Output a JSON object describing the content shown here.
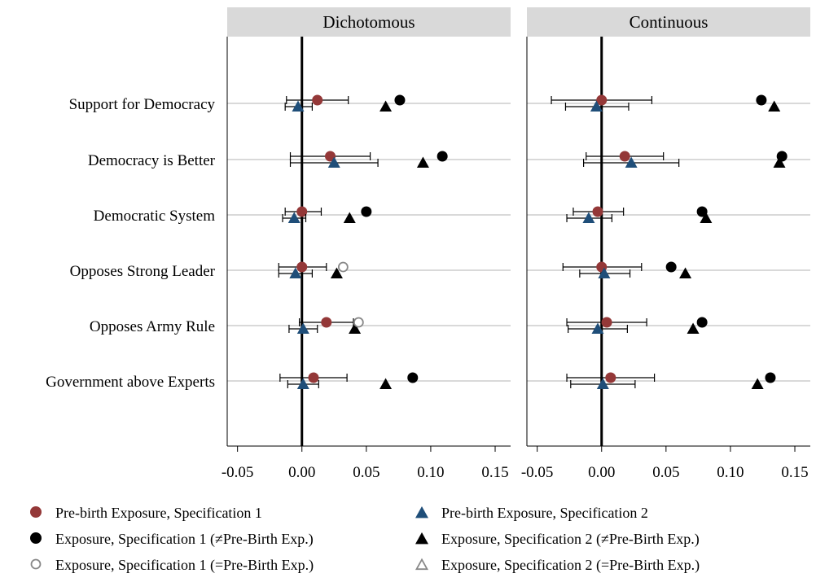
{
  "chart_data": {
    "type": "scatter",
    "subtype": "coefficient-plot with 95% confidence intervals",
    "panels": [
      {
        "title": "Dichotomous",
        "xlim": [
          -0.058,
          0.162
        ]
      },
      {
        "title": "Continuous",
        "xlim": [
          -0.058,
          0.162
        ]
      }
    ],
    "xticks": [
      -0.05,
      0.0,
      0.05,
      0.1,
      0.15
    ],
    "xtick_labels": [
      "-0.05",
      "0.00",
      "0.05",
      "0.10",
      "0.15"
    ],
    "categories": [
      "Support for Democracy",
      "Democracy is Better",
      "Democratic System",
      "Opposes Strong Leader",
      "Opposes Army Rule",
      "Government above Experts"
    ],
    "reference_line": 0,
    "grid": "horizontal row lines",
    "legend_position": "bottom",
    "colors": {
      "prebirth": "#943838",
      "spec2": "#1f4e79",
      "exposure": "#000000",
      "hollow": "#888888",
      "panel_header": "#d9d9d9",
      "row_line": "#d9d9d9"
    },
    "series": [
      {
        "name": "Pre-birth Exposure, Specification 1",
        "marker": "circle",
        "color": "#943838",
        "dichotomous": [
          {
            "est": 0.012,
            "lo": -0.012,
            "hi": 0.036
          },
          {
            "est": 0.022,
            "lo": -0.009,
            "hi": 0.053
          },
          {
            "est": 0.0,
            "lo": -0.013,
            "hi": 0.015
          },
          {
            "est": 0.0,
            "lo": -0.018,
            "hi": 0.019
          },
          {
            "est": 0.019,
            "lo": -0.002,
            "hi": 0.04
          },
          {
            "est": 0.009,
            "lo": -0.017,
            "hi": 0.035
          }
        ],
        "continuous": [
          {
            "est": 0.0,
            "lo": -0.039,
            "hi": 0.039
          },
          {
            "est": 0.018,
            "lo": -0.012,
            "hi": 0.048
          },
          {
            "est": -0.003,
            "lo": -0.022,
            "hi": 0.017
          },
          {
            "est": 0.0,
            "lo": -0.03,
            "hi": 0.031
          },
          {
            "est": 0.004,
            "lo": -0.027,
            "hi": 0.035
          },
          {
            "est": 0.007,
            "lo": -0.027,
            "hi": 0.041
          }
        ]
      },
      {
        "name": "Pre-birth Exposure, Specification 2",
        "marker": "triangle",
        "color": "#1f4e79",
        "dichotomous": [
          {
            "est": -0.003,
            "lo": -0.013,
            "hi": 0.008
          },
          {
            "est": 0.025,
            "lo": -0.009,
            "hi": 0.059
          },
          {
            "est": -0.006,
            "lo": -0.015,
            "hi": 0.003
          },
          {
            "est": -0.005,
            "lo": -0.018,
            "hi": 0.008
          },
          {
            "est": 0.001,
            "lo": -0.01,
            "hi": 0.012
          },
          {
            "est": 0.001,
            "lo": -0.011,
            "hi": 0.013
          }
        ],
        "continuous": [
          {
            "est": -0.004,
            "lo": -0.028,
            "hi": 0.021
          },
          {
            "est": 0.023,
            "lo": -0.014,
            "hi": 0.06
          },
          {
            "est": -0.01,
            "lo": -0.027,
            "hi": 0.008
          },
          {
            "est": 0.002,
            "lo": -0.017,
            "hi": 0.022
          },
          {
            "est": -0.003,
            "lo": -0.026,
            "hi": 0.02
          },
          {
            "est": 0.001,
            "lo": -0.024,
            "hi": 0.026
          }
        ]
      },
      {
        "name": "Exposure, Specification 1 (≠Pre-Birth Exp.)",
        "marker": "circle",
        "color": "#000000",
        "dichotomous": [
          {
            "row": 0,
            "est": 0.076
          },
          {
            "row": 1,
            "est": 0.109
          },
          {
            "row": 2,
            "est": 0.05
          },
          {
            "row": 5,
            "est": 0.086
          }
        ],
        "continuous": [
          {
            "row": 0,
            "est": 0.124
          },
          {
            "row": 1,
            "est": 0.14
          },
          {
            "row": 2,
            "est": 0.078
          },
          {
            "row": 3,
            "est": 0.054
          },
          {
            "row": 4,
            "est": 0.078
          },
          {
            "row": 5,
            "est": 0.131
          }
        ]
      },
      {
        "name": "Exposure, Specification 2 (≠Pre-Birth Exp.)",
        "marker": "triangle",
        "color": "#000000",
        "dichotomous": [
          {
            "row": 0,
            "est": 0.065
          },
          {
            "row": 1,
            "est": 0.094
          },
          {
            "row": 2,
            "est": 0.037
          },
          {
            "row": 3,
            "est": 0.027
          },
          {
            "row": 4,
            "est": 0.041
          },
          {
            "row": 5,
            "est": 0.065
          }
        ],
        "continuous": [
          {
            "row": 0,
            "est": 0.134
          },
          {
            "row": 1,
            "est": 0.138
          },
          {
            "row": 2,
            "est": 0.081
          },
          {
            "row": 3,
            "est": 0.065
          },
          {
            "row": 4,
            "est": 0.071
          },
          {
            "row": 5,
            "est": 0.121
          }
        ]
      },
      {
        "name": "Exposure, Specification 1 (=Pre-Birth Exp.)",
        "marker": "circle-hollow",
        "color": "#888888",
        "dichotomous": [
          {
            "row": 3,
            "est": 0.032
          },
          {
            "row": 4,
            "est": 0.044
          }
        ],
        "continuous": []
      },
      {
        "name": "Exposure, Specification 2 (=Pre-Birth Exp.)",
        "marker": "triangle-hollow",
        "color": "#888888",
        "dichotomous": [],
        "continuous": []
      }
    ]
  },
  "legend": {
    "items": [
      {
        "label": "Pre-birth Exposure, Specification 1",
        "icon": "filled-circle-icon",
        "color": "#943838"
      },
      {
        "label": "Pre-birth Exposure, Specification 2",
        "icon": "filled-triangle-icon",
        "color": "#1f4e79"
      },
      {
        "label": "Exposure, Specification 1 (≠Pre-Birth Exp.)",
        "icon": "filled-circle-icon",
        "color": "#000000"
      },
      {
        "label": "Exposure, Specification 2 (≠Pre-Birth Exp.)",
        "icon": "filled-triangle-icon",
        "color": "#000000"
      },
      {
        "label": "Exposure, Specification 1 (=Pre-Birth Exp.)",
        "icon": "hollow-circle-icon",
        "color": "#888888"
      },
      {
        "label": "Exposure, Specification 2 (=Pre-Birth Exp.)",
        "icon": "hollow-triangle-icon",
        "color": "#888888"
      }
    ]
  }
}
